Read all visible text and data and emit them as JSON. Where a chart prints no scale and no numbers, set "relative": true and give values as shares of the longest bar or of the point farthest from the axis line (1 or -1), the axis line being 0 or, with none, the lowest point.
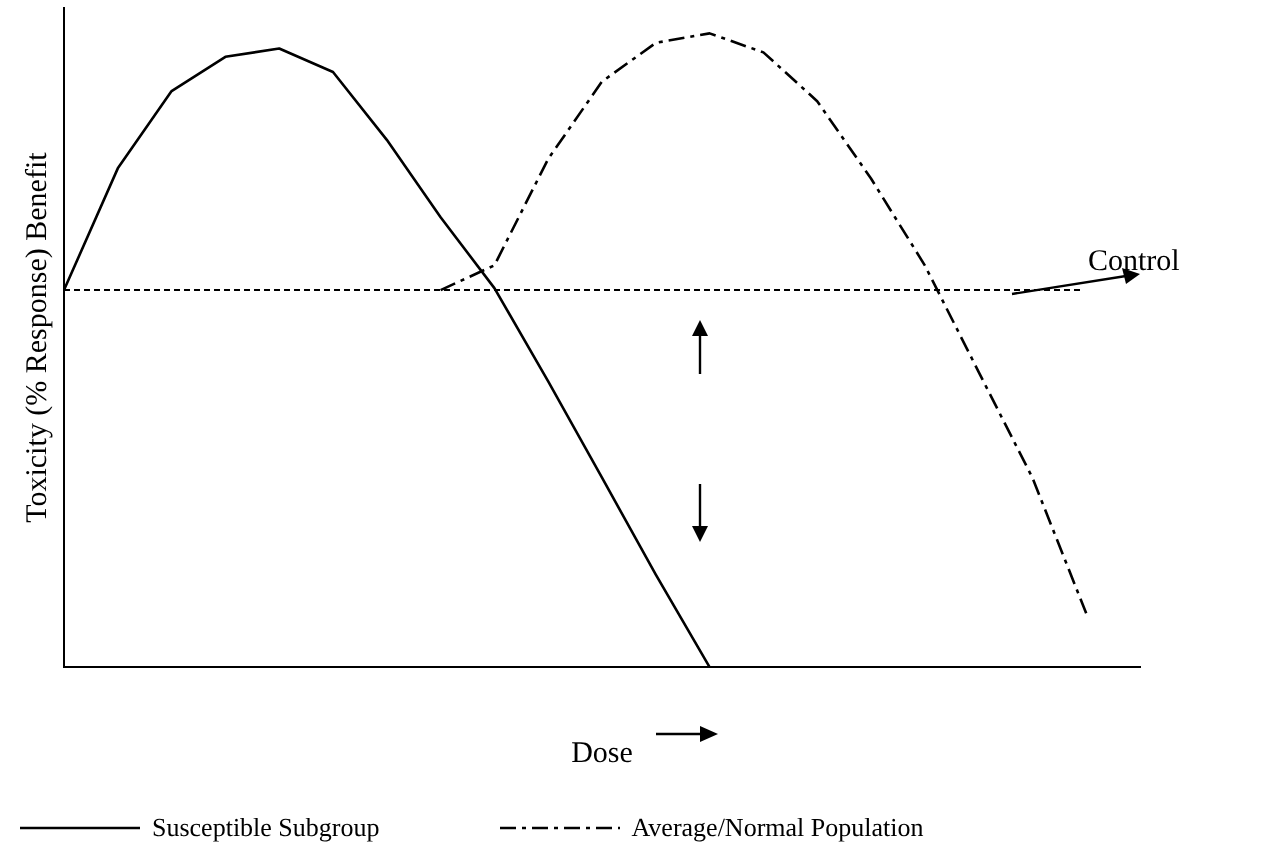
{
  "chart_data": {
    "type": "line",
    "relative": true,
    "xlabel": "Dose",
    "ylabel": "Toxicity (% Response) Benefit",
    "categories": [
      null,
      null,
      null,
      null,
      null,
      null,
      null,
      null,
      null,
      null,
      null,
      null,
      null,
      null,
      null,
      null,
      null,
      null,
      null,
      null,
      null
    ],
    "series": [
      {
        "name": "Susceptible Subgroup",
        "color": "#000000",
        "line_style": "solid",
        "values": [
          0.595,
          0.787,
          0.909,
          0.963,
          0.976,
          0.939,
          0.832,
          0.71,
          0.598,
          0.451,
          0.299,
          0.146,
          0,
          null,
          null,
          null,
          null,
          null,
          null,
          null,
          null
        ]
      },
      {
        "name": "Average/Normal Population",
        "color": "#000000",
        "line_style": "dashed",
        "values": [
          null,
          null,
          null,
          null,
          null,
          null,
          null,
          0.595,
          0.634,
          0.802,
          0.924,
          0.985,
          1,
          0.97,
          0.893,
          0.771,
          0.634,
          0.466,
          0.299,
          0.085,
          null
        ]
      }
    ],
    "ref_lines": [
      {
        "axis": "y",
        "value": 0.595,
        "label": "Control",
        "color": "#000000",
        "line_style": "dotted"
      }
    ],
    "legend": "bottom",
    "grid": false,
    "marker": "none"
  }
}
